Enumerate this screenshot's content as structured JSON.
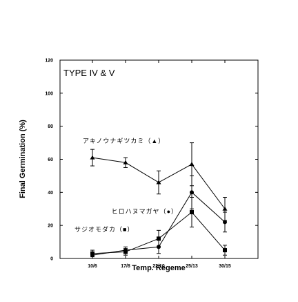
{
  "chart_data": {
    "type": "line",
    "title": "TYPE IV & V",
    "xlabel": "Temp. Regeme",
    "ylabel": "Final Germination (%)",
    "categories": [
      "10/6",
      "17/8",
      "22/10",
      "25/13",
      "30/15"
    ],
    "ylim": [
      0,
      120
    ],
    "yticks": [
      0,
      20,
      40,
      60,
      80,
      100,
      120
    ],
    "grid": false,
    "legend": "inline labels",
    "series": [
      {
        "name": "アキノウナギツカミ（▲）",
        "marker": "triangle",
        "values": [
          61,
          58,
          46,
          57,
          30
        ],
        "errors": [
          5,
          3,
          7,
          13,
          7
        ]
      },
      {
        "name": "ヒロハヌマガヤ（●）",
        "marker": "circle",
        "values": [
          2,
          5,
          7,
          40,
          22
        ],
        "errors": [
          2,
          2,
          4,
          10,
          6
        ]
      },
      {
        "name": "サジオモダカ（■）",
        "marker": "square",
        "values": [
          3,
          4,
          12,
          28,
          5
        ],
        "errors": [
          2,
          2,
          5,
          9,
          3
        ]
      }
    ]
  }
}
